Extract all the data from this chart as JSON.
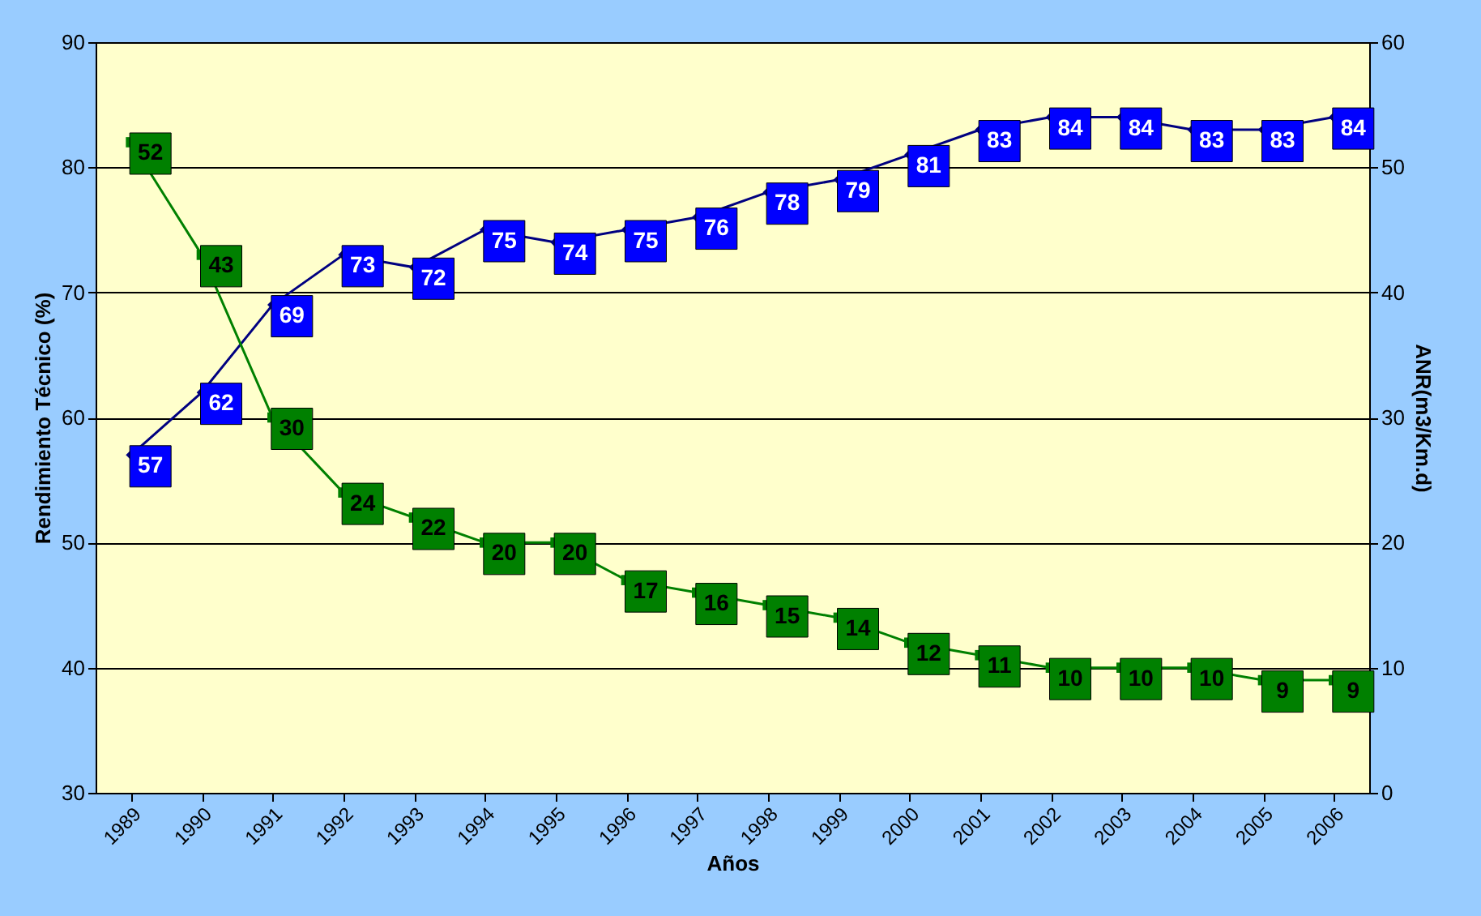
{
  "chart_data": {
    "type": "line",
    "xlabel": "Años",
    "ylabel": "Rendimiento Técnico (%)",
    "y2label": "ANR(m3/Km.d)",
    "categories": [
      "1989",
      "1990",
      "1991",
      "1992",
      "1993",
      "1994",
      "1995",
      "1996",
      "1997",
      "1998",
      "1999",
      "2000",
      "2001",
      "2002",
      "2003",
      "2004",
      "2005",
      "2006"
    ],
    "series": [
      {
        "color": "#000080",
        "marker": "diamond",
        "values": [
          57,
          62,
          69,
          73,
          72,
          75,
          74,
          75,
          76,
          78,
          79,
          81,
          83,
          84,
          84,
          83,
          83,
          84
        ]
      },
      {
        "color": "#008000",
        "marker": "square",
        "axis": "y2",
        "values": [
          52,
          43,
          30,
          24,
          22,
          20,
          20,
          17,
          16,
          15,
          14,
          12,
          11,
          10,
          10,
          10,
          9,
          9
        ]
      }
    ],
    "ylim": [
      30,
      90
    ],
    "yticks": [
      30,
      40,
      50,
      60,
      70,
      80,
      90
    ],
    "y2lim": [
      0,
      60
    ],
    "y2ticks": [
      0,
      10,
      20,
      30,
      40,
      50,
      60
    ],
    "grid": "y",
    "data_labels": true,
    "legend": false
  }
}
